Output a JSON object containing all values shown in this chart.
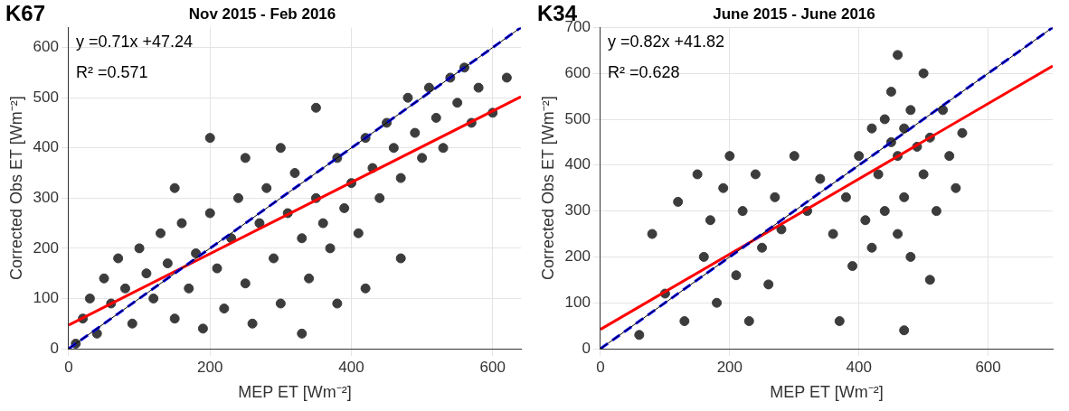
{
  "chart_data": [
    {
      "type": "scatter",
      "title": "Nov 2015 - Feb 2016",
      "xlabel": "MEP ET [Wm⁻²]",
      "ylabel": "Corrected Obs ET [Wm⁻²]",
      "annotations": [
        "K67",
        "y =0.71x +47.24",
        "R² =0.571"
      ],
      "xlim": [
        0,
        640
      ],
      "ylim": [
        0,
        640
      ],
      "xticks": [
        0,
        200,
        400,
        600
      ],
      "yticks": [
        0,
        100,
        200,
        300,
        400,
        500,
        600
      ],
      "grid": true,
      "legend": false,
      "marker": "circle",
      "series": [
        {
          "type": "scatter",
          "color": "#3c3c3c",
          "x": [
            10,
            20,
            30,
            40,
            50,
            60,
            70,
            80,
            90,
            100,
            110,
            120,
            130,
            140,
            150,
            160,
            170,
            180,
            190,
            200,
            210,
            220,
            230,
            240,
            250,
            260,
            270,
            280,
            290,
            300,
            310,
            320,
            330,
            340,
            350,
            360,
            370,
            380,
            390,
            400,
            410,
            420,
            430,
            440,
            450,
            460,
            470,
            480,
            490,
            500,
            510,
            520,
            530,
            540,
            550,
            560,
            570,
            580,
            600,
            620,
            350,
            300,
            250,
            420,
            380,
            470,
            200,
            150,
            330
          ],
          "values": [
            10,
            60,
            100,
            30,
            140,
            90,
            180,
            120,
            50,
            200,
            150,
            100,
            230,
            170,
            60,
            250,
            120,
            190,
            40,
            270,
            160,
            80,
            220,
            300,
            130,
            50,
            250,
            320,
            180,
            90,
            270,
            350,
            220,
            140,
            300,
            250,
            200,
            380,
            280,
            330,
            230,
            420,
            360,
            300,
            450,
            400,
            340,
            500,
            430,
            380,
            520,
            460,
            400,
            540,
            490,
            560,
            450,
            520,
            470,
            540,
            480,
            400,
            380,
            120,
            90,
            180,
            420,
            320,
            30
          ]
        },
        {
          "type": "line",
          "color": "#000000",
          "marker": "none",
          "x": [
            0,
            640
          ],
          "values": [
            0,
            640
          ]
        },
        {
          "type": "line",
          "color": "#0000ff",
          "marker": "none",
          "line_style": "dashed",
          "x": [
            0,
            640
          ],
          "values": [
            0,
            640
          ]
        },
        {
          "type": "line",
          "color": "#ff0000",
          "marker": "none",
          "x": [
            0,
            640
          ],
          "values": [
            47,
            502
          ]
        }
      ]
    },
    {
      "type": "scatter",
      "title": "June 2015 - June 2016",
      "xlabel": "MEP ET [Wm⁻²]",
      "ylabel": "Corrected Obs ET [Wm⁻²]",
      "annotations": [
        "K34",
        "y =0.82x +41.82",
        "R² =0.628"
      ],
      "xlim": [
        0,
        700
      ],
      "ylim": [
        0,
        700
      ],
      "xticks": [
        0,
        200,
        400,
        600
      ],
      "yticks": [
        0,
        100,
        200,
        300,
        400,
        500,
        600,
        700
      ],
      "grid": true,
      "legend": false,
      "marker": "circle",
      "series": [
        {
          "type": "scatter",
          "color": "#3c3c3c",
          "x": [
            60,
            80,
            100,
            120,
            130,
            150,
            160,
            170,
            180,
            190,
            200,
            210,
            220,
            230,
            240,
            250,
            260,
            270,
            280,
            300,
            320,
            340,
            360,
            380,
            390,
            400,
            410,
            420,
            420,
            430,
            440,
            440,
            450,
            450,
            460,
            460,
            470,
            470,
            480,
            480,
            490,
            500,
            500,
            510,
            520,
            530,
            540,
            550,
            560,
            460,
            470,
            370,
            510
          ],
          "values": [
            30,
            250,
            120,
            320,
            60,
            380,
            200,
            280,
            100,
            350,
            420,
            160,
            300,
            60,
            380,
            220,
            140,
            330,
            260,
            420,
            300,
            370,
            250,
            330,
            180,
            420,
            280,
            480,
            220,
            380,
            500,
            300,
            450,
            560,
            420,
            250,
            480,
            330,
            520,
            200,
            440,
            600,
            380,
            460,
            300,
            520,
            420,
            350,
            470,
            640,
            40,
            60,
            150
          ]
        },
        {
          "type": "line",
          "color": "#000000",
          "marker": "none",
          "x": [
            0,
            700
          ],
          "values": [
            0,
            700
          ]
        },
        {
          "type": "line",
          "color": "#0000ff",
          "marker": "none",
          "line_style": "dashed",
          "x": [
            0,
            700
          ],
          "values": [
            0,
            700
          ]
        },
        {
          "type": "line",
          "color": "#ff0000",
          "marker": "none",
          "x": [
            0,
            700
          ],
          "values": [
            42,
            616
          ]
        }
      ]
    }
  ]
}
